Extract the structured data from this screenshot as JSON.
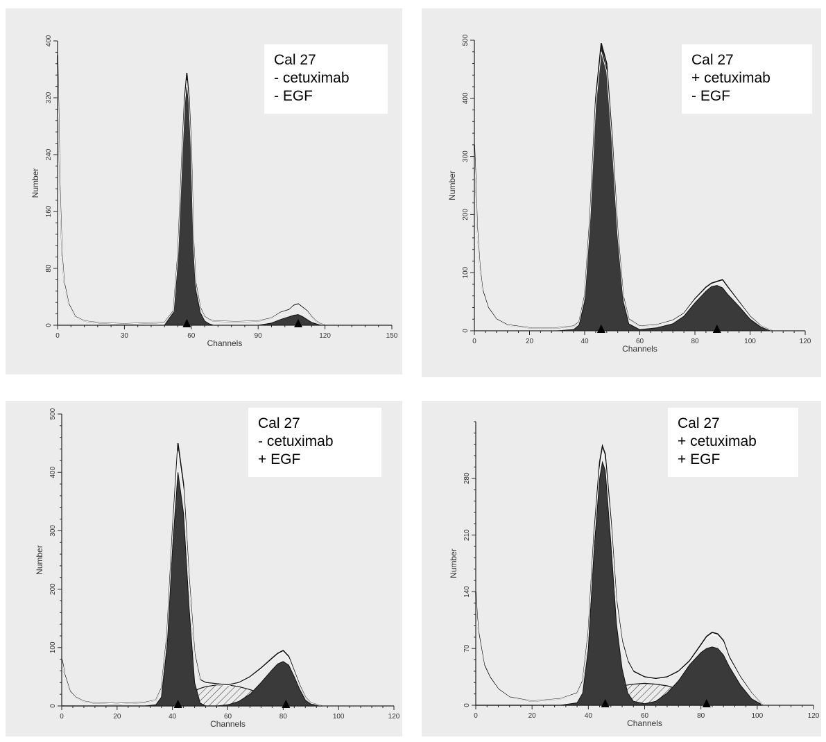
{
  "colors": {
    "background": "#ececec",
    "fill": "#3a3a3a",
    "line": "#111111",
    "legend_bg": "#ffffff"
  },
  "chart_data": [
    {
      "type": "area",
      "legend": [
        "Cal 27",
        "- cetuximab",
        "- EGF"
      ],
      "xlabel": "Channels",
      "ylabel": "Number",
      "xlim": [
        0,
        150
      ],
      "ylim": [
        0,
        400
      ],
      "xticks": [
        0,
        30,
        60,
        90,
        120,
        150
      ],
      "yticks": [
        0,
        80,
        160,
        240,
        320,
        400
      ],
      "peak_markers": [
        58,
        108
      ],
      "x": [
        0,
        0.5,
        1,
        2,
        3,
        5,
        8,
        12,
        20,
        30,
        40,
        48,
        52,
        54,
        56,
        57,
        58,
        59,
        60,
        61,
        62,
        64,
        66,
        68,
        70,
        80,
        90,
        96,
        100,
        104,
        106,
        108,
        110,
        112,
        114,
        116,
        118,
        120
      ],
      "series": [
        {
          "values": [
            380,
            300,
            200,
            100,
            60,
            30,
            12,
            6,
            3,
            2,
            3,
            4,
            20,
            100,
            250,
            320,
            355,
            320,
            250,
            120,
            60,
            25,
            12,
            8,
            6,
            5,
            6,
            10,
            18,
            22,
            28,
            30,
            25,
            20,
            12,
            6,
            2,
            0
          ]
        },
        {
          "values": [
            0,
            0,
            0,
            0,
            0,
            0,
            0,
            0,
            0,
            0,
            0,
            0,
            18,
            95,
            240,
            305,
            335,
            305,
            240,
            110,
            50,
            18,
            6,
            2,
            0,
            0,
            0,
            3,
            8,
            12,
            14,
            15,
            12,
            8,
            4,
            2,
            0,
            0
          ]
        }
      ]
    },
    {
      "type": "area",
      "legend": [
        "Cal 27",
        "+ cetuximab",
        "- EGF"
      ],
      "xlabel": "Channels",
      "ylabel": "Number",
      "xlim": [
        0,
        120
      ],
      "ylim": [
        0,
        500
      ],
      "xticks": [
        0,
        20,
        40,
        60,
        80,
        100,
        120
      ],
      "yticks": [
        0,
        100,
        200,
        300,
        400,
        500
      ],
      "peak_markers": [
        46,
        88
      ],
      "x": [
        0,
        0.5,
        1,
        2,
        3,
        5,
        8,
        12,
        20,
        30,
        36,
        38,
        40,
        42,
        44,
        46,
        48,
        50,
        52,
        54,
        56,
        60,
        66,
        72,
        76,
        80,
        84,
        86,
        88,
        90,
        92,
        96,
        100,
        104,
        108
      ],
      "series": [
        {
          "values": [
            320,
            260,
            180,
            110,
            70,
            40,
            20,
            10,
            5,
            5,
            8,
            15,
            60,
            200,
            400,
            495,
            460,
            330,
            170,
            60,
            20,
            8,
            10,
            18,
            30,
            55,
            75,
            82,
            85,
            88,
            75,
            50,
            25,
            8,
            0
          ]
        },
        {
          "values": [
            0,
            0,
            0,
            0,
            0,
            0,
            0,
            0,
            0,
            0,
            2,
            10,
            50,
            190,
            390,
            490,
            450,
            320,
            160,
            50,
            12,
            2,
            5,
            12,
            25,
            48,
            68,
            76,
            78,
            74,
            62,
            42,
            20,
            6,
            0
          ]
        }
      ]
    },
    {
      "type": "area",
      "legend": [
        "Cal 27",
        "- cetuximab",
        "+ EGF"
      ],
      "xlabel": "Channels",
      "ylabel": "Number",
      "xlim": [
        0,
        120
      ],
      "ylim": [
        0,
        500
      ],
      "xticks": [
        0,
        20,
        40,
        60,
        80,
        100,
        120
      ],
      "yticks": [
        0,
        100,
        200,
        300,
        400,
        500
      ],
      "peak_markers": [
        42,
        81
      ],
      "x": [
        0,
        0.5,
        1,
        2,
        3,
        5,
        8,
        12,
        20,
        30,
        34,
        36,
        38,
        40,
        42,
        44,
        46,
        48,
        50,
        52,
        56,
        60,
        64,
        68,
        72,
        76,
        78,
        80,
        82,
        84,
        86,
        88,
        90,
        94
      ],
      "series": [
        {
          "values": [
            80,
            70,
            55,
            40,
            25,
            15,
            8,
            5,
            4,
            6,
            10,
            30,
            120,
            300,
            450,
            380,
            220,
            90,
            45,
            40,
            38,
            36,
            40,
            50,
            65,
            82,
            90,
            95,
            85,
            60,
            35,
            15,
            5,
            0
          ]
        },
        {
          "values": [
            0,
            0,
            0,
            0,
            0,
            0,
            0,
            0,
            0,
            0,
            2,
            15,
            100,
            270,
            400,
            330,
            170,
            40,
            5,
            0,
            0,
            2,
            8,
            20,
            40,
            62,
            72,
            76,
            70,
            50,
            28,
            10,
            3,
            0
          ]
        },
        {
          "values": [
            0,
            0,
            0,
            0,
            0,
            0,
            0,
            0,
            0,
            0,
            0,
            3,
            6,
            10,
            14,
            18,
            22,
            26,
            30,
            33,
            36,
            36,
            33,
            28,
            22,
            14,
            10,
            7,
            4,
            2,
            1,
            0,
            0,
            0
          ]
        }
      ]
    },
    {
      "type": "area",
      "legend": [
        "Cal 27",
        "+ cetuximab",
        "+ EGF"
      ],
      "xlabel": "Channels",
      "ylabel": "Number",
      "xlim": [
        0,
        120
      ],
      "ylim": [
        0,
        350
      ],
      "xticks": [
        0,
        20,
        40,
        60,
        80,
        100,
        120
      ],
      "yticks": [
        0,
        70,
        140,
        210,
        280
      ],
      "peak_markers": [
        46,
        82
      ],
      "x": [
        0,
        0.5,
        1,
        2,
        3,
        5,
        8,
        12,
        20,
        30,
        36,
        38,
        40,
        42,
        44,
        45,
        46,
        48,
        50,
        52,
        54,
        56,
        60,
        64,
        68,
        72,
        76,
        80,
        82,
        84,
        86,
        88,
        90,
        94,
        98,
        102
      ],
      "series": [
        {
          "values": [
            140,
            110,
            90,
            70,
            50,
            35,
            20,
            10,
            5,
            8,
            15,
            30,
            90,
            210,
            300,
            320,
            310,
            230,
            130,
            80,
            55,
            42,
            35,
            33,
            35,
            42,
            55,
            75,
            85,
            90,
            88,
            80,
            60,
            35,
            15,
            0
          ]
        },
        {
          "values": [
            0,
            0,
            0,
            0,
            0,
            0,
            0,
            0,
            0,
            0,
            3,
            15,
            70,
            190,
            280,
            300,
            290,
            200,
            100,
            45,
            15,
            5,
            2,
            5,
            15,
            30,
            50,
            65,
            70,
            72,
            70,
            62,
            48,
            25,
            8,
            0
          ]
        },
        {
          "values": [
            0,
            0,
            0,
            0,
            0,
            0,
            0,
            0,
            0,
            0,
            1,
            3,
            6,
            9,
            12,
            14,
            16,
            19,
            22,
            24,
            25,
            26,
            27,
            26,
            24,
            20,
            16,
            12,
            10,
            8,
            6,
            4,
            3,
            1,
            0,
            0
          ]
        }
      ]
    }
  ]
}
